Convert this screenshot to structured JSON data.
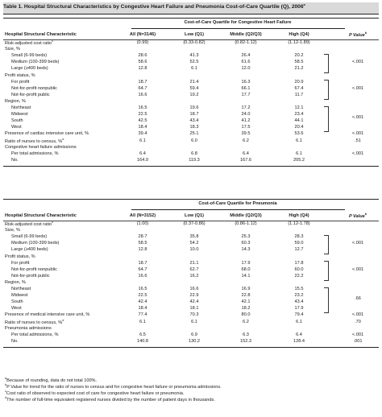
{
  "title": "Table 1. Hospital Structural Characteristics by Congestive Heart Failure and Pneumonia Cost-of-Care Quartile (Q), 2006",
  "title_sup": "a",
  "headers": {
    "characteristic": "Hospital Structural Characteristic",
    "pvalue": "P Value",
    "pvalue_sup": "b"
  },
  "panels": [
    {
      "quartile_label": "Cost-of-Care Quartile for Congestive Heart Failure",
      "col_all": "All (N=3146)",
      "col_q1": "Low (Q1)",
      "col_q2": "Middle (Q2/Q3)",
      "col_q3": "High (Q4)",
      "rows": [
        {
          "label": "Risk-adjusted cost ratio",
          "sup": "c",
          "indent": false,
          "v": [
            "(0.99)",
            "(0.33-0.82)",
            "(0.82-1.12)",
            "(1.12-1.89)"
          ],
          "p": ""
        },
        {
          "label": "Size, %",
          "indent": false,
          "v": [
            "",
            "",
            "",
            ""
          ],
          "p": ""
        },
        {
          "label": "Small (6-99 beds)",
          "indent": true,
          "v": [
            "28.6",
            "41.3",
            "26.4",
            "20.2"
          ],
          "p": ""
        },
        {
          "label": "Medium (100-399 beds)",
          "indent": true,
          "v": [
            "58.6",
            "52.5",
            "61.6",
            "58.5"
          ],
          "p": ""
        },
        {
          "label": "Large (≥400 beds)",
          "indent": true,
          "v": [
            "12.8",
            "6.1",
            "12.0",
            "21.2"
          ],
          "p": ""
        },
        {
          "label": "Profit status, %",
          "indent": false,
          "v": [
            "",
            "",
            "",
            ""
          ],
          "p": ""
        },
        {
          "label": "For profit",
          "indent": true,
          "v": [
            "18.7",
            "21.4",
            "16.3",
            "20.9"
          ],
          "p": ""
        },
        {
          "label": "Not-for-profit nonpublic",
          "indent": true,
          "v": [
            "64.7",
            "59.4",
            "66.1",
            "67.4"
          ],
          "p": ""
        },
        {
          "label": "Not-for-profit public",
          "indent": true,
          "v": [
            "16.6",
            "19.2",
            "17.7",
            "11.7"
          ],
          "p": ""
        },
        {
          "label": "Region, %",
          "indent": false,
          "v": [
            "",
            "",
            "",
            ""
          ],
          "p": ""
        },
        {
          "label": "Northeast",
          "indent": true,
          "v": [
            "16.5",
            "19.6",
            "17.2",
            "12.1"
          ],
          "p": ""
        },
        {
          "label": "Midwest",
          "indent": true,
          "v": [
            "22.5",
            "18.7",
            "24.0",
            "23.4"
          ],
          "p": ""
        },
        {
          "label": "South",
          "indent": true,
          "v": [
            "42.5",
            "43.4",
            "41.2",
            "44.1"
          ],
          "p": ""
        },
        {
          "label": "West",
          "indent": true,
          "v": [
            "18.4",
            "18.3",
            "17.5",
            "20.4"
          ],
          "p": ""
        },
        {
          "label": "Presence of cardiac intensive care unit, %",
          "indent": false,
          "v": [
            "39.4",
            "25.1",
            "39.5",
            "53.6"
          ],
          "p": "<.001"
        },
        {
          "label": "Ratio of nurses to census, %",
          "sup": "d",
          "indent": false,
          "v": [
            "6.1",
            "6.0",
            "6.2",
            "6.1"
          ],
          "p": ".51"
        },
        {
          "label": "Congestive heart failure admissions",
          "indent": false,
          "v": [
            "",
            "",
            "",
            ""
          ],
          "p": ""
        },
        {
          "label": "Per total admissions, %",
          "indent": true,
          "v": [
            "6.4",
            "6.8",
            "6.4",
            "6.1"
          ],
          "p": "<.001"
        },
        {
          "label": "No.",
          "indent": true,
          "v": [
            "164.9",
            "119.3",
            "167.6",
            "205.2"
          ],
          "p": ""
        }
      ],
      "brace_p": [
        "<.001",
        "<.001",
        "<.001"
      ]
    },
    {
      "quartile_label": "Cost-of-Care Quartile for Pneumonia",
      "col_all": "All (N=3152)",
      "col_q1": "Low (Q1)",
      "col_q2": "Middle (Q2/Q3)",
      "col_q3": "High (Q4)",
      "rows": [
        {
          "label": "Risk-adjusted cost ratio",
          "sup": "c",
          "indent": false,
          "v": [
            "(1.00)",
            "(0.37-0.86)",
            "(0.86-1.12)",
            "(1.12-1.78)"
          ],
          "p": ""
        },
        {
          "label": "Size, %",
          "indent": false,
          "v": [
            "",
            "",
            "",
            ""
          ],
          "p": ""
        },
        {
          "label": "Small (6-99 beds)",
          "indent": true,
          "v": [
            "28.7",
            "35.8",
            "25.3",
            "28.3"
          ],
          "p": ""
        },
        {
          "label": "Medium (100-399 beds)",
          "indent": true,
          "v": [
            "58.5",
            "54.2",
            "60.3",
            "59.0"
          ],
          "p": ""
        },
        {
          "label": "Large (≥400 beds)",
          "indent": true,
          "v": [
            "12.8",
            "10.0",
            "14.3",
            "12.7"
          ],
          "p": ""
        },
        {
          "label": "Profit status, %",
          "indent": false,
          "v": [
            "",
            "",
            "",
            ""
          ],
          "p": ""
        },
        {
          "label": "For profit",
          "indent": true,
          "v": [
            "18.7",
            "21.1",
            "17.9",
            "17.8"
          ],
          "p": ""
        },
        {
          "label": "Not-for-profit nonpublic",
          "indent": true,
          "v": [
            "64.7",
            "62.7",
            "68.0",
            "60.0"
          ],
          "p": ""
        },
        {
          "label": "Not-for-profit public",
          "indent": true,
          "v": [
            "16.6",
            "16.2",
            "14.1",
            "22.2"
          ],
          "p": ""
        },
        {
          "label": "Region, %",
          "indent": false,
          "v": [
            "",
            "",
            "",
            ""
          ],
          "p": ""
        },
        {
          "label": "Northeast",
          "indent": true,
          "v": [
            "16.5",
            "16.6",
            "16.9",
            "15.5"
          ],
          "p": ""
        },
        {
          "label": "Midwest",
          "indent": true,
          "v": [
            "22.5",
            "22.9",
            "22.8",
            "23.2"
          ],
          "p": ""
        },
        {
          "label": "South",
          "indent": true,
          "v": [
            "42.4",
            "42.4",
            "42.1",
            "43.4"
          ],
          "p": ""
        },
        {
          "label": "West",
          "indent": true,
          "v": [
            "18.4",
            "18.1",
            "18.2",
            "17.9"
          ],
          "p": ""
        },
        {
          "label": "Presence of medical intensive care unit, %",
          "indent": false,
          "v": [
            "77.4",
            "70.3",
            "80.0",
            "79.4"
          ],
          "p": "<.001"
        },
        {
          "label": "Ratio of nurses to census, %",
          "sup": "d",
          "indent": false,
          "v": [
            "6.1",
            "6.1",
            "6.2",
            "6.1"
          ],
          "p": ".70"
        },
        {
          "label": "Pneumonia admissions",
          "indent": false,
          "v": [
            "",
            "",
            "",
            ""
          ],
          "p": ""
        },
        {
          "label": "Per total admissions, %",
          "indent": true,
          "v": [
            "6.5",
            "6.9",
            "6.3",
            "6.4"
          ],
          "p": "<.001"
        },
        {
          "label": "No.",
          "indent": true,
          "v": [
            "140.8",
            "130.2",
            "152.3",
            "128.4"
          ],
          "p": ".001"
        }
      ],
      "brace_p": [
        "<.001",
        "<.001",
        ".66"
      ]
    }
  ],
  "footnotes": [
    {
      "sup": "a",
      "text": "Because of rounding, data do not total 100%."
    },
    {
      "sup": "b",
      "text": "P Value for trend for the ratio of nurses to census and for congestive heart failure or pneumonia admissions."
    },
    {
      "sup": "c",
      "text": "Cost ratio of observed to expected cost of care for congestive heart failure or pneumonia."
    },
    {
      "sup": "d",
      "text": "The number of full-time equivalent registered nurses divided by the number of patient days in thousands."
    }
  ]
}
